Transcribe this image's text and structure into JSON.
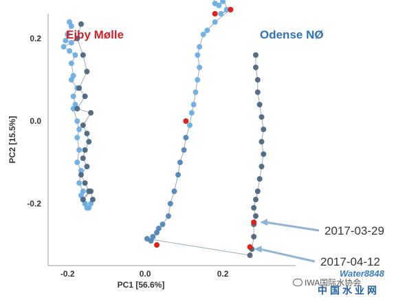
{
  "chart_data": {
    "type": "scatter",
    "xlabel": "PC1 [56.6%]",
    "ylabel": "PC2 [15.5%]",
    "xlim": [
      -0.25,
      0.37
    ],
    "ylim": [
      -0.35,
      0.26
    ],
    "xticks": [
      {
        "value": -0.2,
        "label": "-0.2"
      },
      {
        "value": 0.0,
        "label": "0.0"
      },
      {
        "value": 0.2,
        "label": "0.2"
      }
    ],
    "yticks": [
      {
        "value": 0.2,
        "label": "0.2"
      },
      {
        "value": 0.0,
        "label": "0.0"
      },
      {
        "value": -0.2,
        "label": "-0.2"
      }
    ],
    "grid": false,
    "connecting_lines": true,
    "colors": {
      "light_point": "#6aaee6",
      "mid_point": "#4f86b8",
      "dark_point": "#4a6680",
      "highlight_point": "#e0211d",
      "line": "#9aa9b8",
      "ejby_label": "#d0202a",
      "odense_label": "#2e73b8",
      "callout_arrow": "#8fb3d6"
    },
    "groups": [
      {
        "name": "Ejby Mølle",
        "color": "#d0202a",
        "series": [
          {
            "tone": "light",
            "points": [
              [
                -0.195,
                0.24
              ],
              [
                -0.19,
                0.23
              ],
              [
                -0.2,
                0.21
              ],
              [
                -0.205,
                0.195
              ],
              [
                -0.19,
                0.19
              ],
              [
                -0.21,
                0.18
              ],
              [
                -0.195,
                0.17
              ],
              [
                -0.18,
                0.16
              ],
              [
                -0.19,
                0.14
              ],
              [
                -0.185,
                0.11
              ],
              [
                -0.19,
                0.1
              ],
              [
                -0.175,
                0.08
              ],
              [
                -0.185,
                0.06
              ],
              [
                -0.18,
                0.04
              ],
              [
                -0.185,
                0.03
              ],
              [
                -0.175,
                0.0
              ],
              [
                -0.17,
                -0.02
              ],
              [
                -0.175,
                -0.04
              ],
              [
                -0.17,
                -0.07
              ],
              [
                -0.175,
                -0.1
              ],
              [
                -0.165,
                -0.12
              ],
              [
                -0.17,
                -0.15
              ],
              [
                -0.16,
                -0.17
              ],
              [
                -0.165,
                -0.18
              ],
              [
                -0.16,
                -0.19
              ],
              [
                -0.155,
                -0.2
              ],
              [
                -0.15,
                -0.21
              ],
              [
                -0.145,
                -0.21
              ],
              [
                -0.155,
                -0.2
              ],
              [
                -0.14,
                -0.2
              ]
            ]
          },
          {
            "tone": "dark",
            "points": [
              [
                -0.165,
                0.235
              ],
              [
                -0.175,
                0.2
              ],
              [
                -0.16,
                0.16
              ],
              [
                -0.15,
                0.12
              ],
              [
                -0.17,
                0.08
              ],
              [
                -0.155,
                0.06
              ],
              [
                -0.175,
                0.03
              ],
              [
                -0.14,
                0.02
              ],
              [
                -0.16,
                -0.01
              ],
              [
                -0.15,
                -0.03
              ],
              [
                -0.145,
                -0.05
              ],
              [
                -0.155,
                -0.07
              ],
              [
                -0.16,
                -0.09
              ],
              [
                -0.15,
                -0.11
              ],
              [
                -0.165,
                -0.13
              ],
              [
                -0.155,
                -0.15
              ],
              [
                -0.145,
                -0.17
              ],
              [
                -0.16,
                -0.19
              ],
              [
                -0.14,
                -0.17
              ],
              [
                -0.135,
                -0.19
              ]
            ]
          }
        ]
      },
      {
        "name": "Odense NØ",
        "color": "#2e73b8",
        "series": [
          {
            "tone": "light",
            "points": [
              [
                0.18,
                0.31
              ],
              [
                0.175,
                0.3
              ],
              [
                0.18,
                0.285
              ],
              [
                0.19,
                0.28
              ],
              [
                0.2,
                0.29
              ],
              [
                0.205,
                0.3
              ],
              [
                0.2,
                0.31
              ],
              [
                0.21,
                0.27
              ],
              [
                0.195,
                0.26
              ],
              [
                0.22,
                0.27
              ],
              [
                0.18,
                0.24
              ],
              [
                0.16,
                0.22
              ],
              [
                0.15,
                0.21
              ],
              [
                0.14,
                0.18
              ],
              [
                0.135,
                0.16
              ],
              [
                0.14,
                0.13
              ],
              [
                0.135,
                0.1
              ],
              [
                0.13,
                0.07
              ],
              [
                0.125,
                0.04
              ],
              [
                0.12,
                0.02
              ],
              [
                0.115,
                -0.01
              ]
            ]
          },
          {
            "tone": "mid",
            "points": [
              [
                0.105,
                -0.04
              ],
              [
                0.1,
                -0.07
              ],
              [
                0.09,
                -0.1
              ],
              [
                0.085,
                -0.13
              ],
              [
                0.075,
                -0.17
              ],
              [
                0.065,
                -0.2
              ],
              [
                0.06,
                -0.23
              ],
              [
                0.045,
                -0.25
              ],
              [
                0.035,
                -0.26
              ],
              [
                0.03,
                -0.27
              ],
              [
                0.02,
                -0.28
              ],
              [
                0.015,
                -0.29
              ],
              [
                0.005,
                -0.285
              ]
            ]
          },
          {
            "tone": "dark",
            "points": [
              [
                0.285,
                0.16
              ],
              [
                0.285,
                0.13
              ],
              [
                0.29,
                0.1
              ],
              [
                0.29,
                0.07
              ],
              [
                0.295,
                0.04
              ],
              [
                0.3,
                0.01
              ],
              [
                0.305,
                -0.02
              ],
              [
                0.3,
                -0.05
              ],
              [
                0.305,
                -0.08
              ],
              [
                0.3,
                -0.11
              ],
              [
                0.295,
                -0.14
              ],
              [
                0.29,
                -0.17
              ],
              [
                0.285,
                -0.19
              ],
              [
                0.28,
                -0.21
              ],
              [
                0.285,
                -0.23
              ],
              [
                0.28,
                -0.25
              ],
              [
                0.28,
                -0.28
              ],
              [
                0.275,
                -0.31
              ],
              [
                0.27,
                -0.325
              ]
            ]
          }
        ],
        "highlighted": [
          [
            0.2,
            0.305
          ],
          [
            0.22,
            0.27
          ],
          [
            0.18,
            0.26
          ],
          [
            0.105,
            0.0
          ],
          [
            0.03,
            -0.3
          ],
          [
            0.28,
            -0.245
          ],
          [
            0.27,
            -0.305
          ]
        ]
      }
    ],
    "annotations": [
      {
        "text": "2017-03-29",
        "target": [
          0.285,
          -0.245
        ]
      },
      {
        "text": "2017-04-12",
        "target": [
          0.27,
          -0.31
        ]
      }
    ]
  },
  "watermark": {
    "social_label": "IWA国际水协会",
    "brand": "Water8848",
    "brand_cn": "中国水业网"
  }
}
